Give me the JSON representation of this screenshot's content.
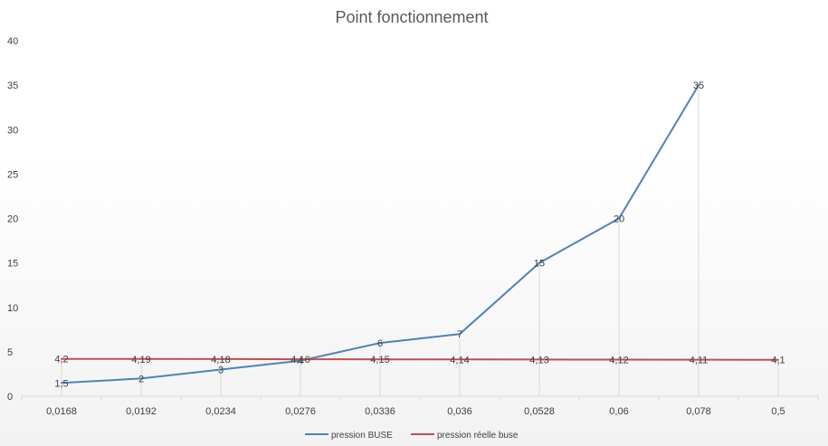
{
  "chart_data": {
    "type": "line",
    "title": "Point fonctionnement",
    "categories": [
      "0,0168",
      "0,0192",
      "0,0234",
      "0,0276",
      "0,0336",
      "0,036",
      "0,0528",
      "0,06",
      "0,078",
      "0,5"
    ],
    "series": [
      {
        "name": "pression BUSE",
        "values": [
          1.5,
          2,
          3,
          4,
          6,
          7,
          15,
          20,
          35,
          null
        ],
        "labels": [
          "1,5",
          "2",
          "3",
          "4",
          "6",
          "7",
          "15",
          "20",
          "35",
          ""
        ],
        "color": "#4f81bd"
      },
      {
        "name": "pression réelle buse",
        "values": [
          4.2,
          4.19,
          4.18,
          4.16,
          4.15,
          4.14,
          4.13,
          4.12,
          4.11,
          4.1
        ],
        "labels": [
          "4,2",
          "4,19",
          "4,18",
          "4,16",
          "4,15",
          "4,14",
          "4,13",
          "4,12",
          "4,11",
          "4,1"
        ],
        "color": "#c0504d"
      }
    ],
    "ylim": [
      0,
      40
    ],
    "yticks": [
      "0",
      "5",
      "10",
      "15",
      "20",
      "25",
      "30",
      "35",
      "40"
    ],
    "ytick_values": [
      0,
      5,
      10,
      15,
      20,
      25,
      30,
      35,
      40
    ],
    "grid": "vertical drop lines",
    "legend": "bottom-center",
    "xlabel": "",
    "ylabel": ""
  }
}
